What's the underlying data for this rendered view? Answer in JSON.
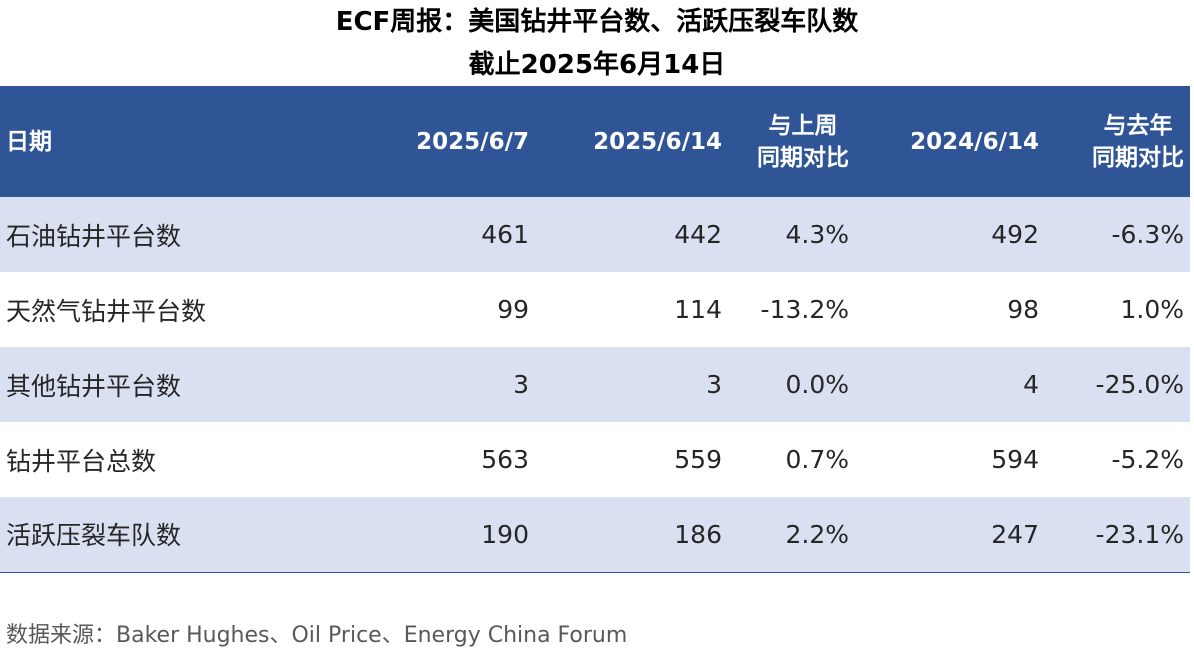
{
  "title": {
    "line1": "ECF周报：美国钻井平台数、活跃压裂车队数",
    "line2": "截止2025年6月14日"
  },
  "table": {
    "headers": {
      "label": "日期",
      "col1": "2025/6/7",
      "col2": "2025/6/14",
      "col3_line1": "与上周",
      "col3_line2": "同期对比",
      "col4": "2024/6/14",
      "col5_line1": "与去年",
      "col5_line2": "同期对比"
    },
    "rows": [
      {
        "label": "石油钻井平台数",
        "v1": "461",
        "v2": "442",
        "wow": "4.3%",
        "v3": "492",
        "yoy": "-6.3%"
      },
      {
        "label": "天然气钻井平台数",
        "v1": "99",
        "v2": "114",
        "wow": "-13.2%",
        "v3": "98",
        "yoy": "1.0%"
      },
      {
        "label": "其他钻井平台数",
        "v1": "3",
        "v2": "3",
        "wow": "0.0%",
        "v3": "4",
        "yoy": "-25.0%"
      },
      {
        "label": "钻井平台总数",
        "v1": "563",
        "v2": "559",
        "wow": "0.7%",
        "v3": "594",
        "yoy": "-5.2%"
      },
      {
        "label": "活跃压裂车队数",
        "v1": "190",
        "v2": "186",
        "wow": "2.2%",
        "v3": "247",
        "yoy": "-23.1%"
      }
    ]
  },
  "source": "数据来源：Baker Hughes、Oil Price、Energy China Forum",
  "colors": {
    "header_bg": "#2F5597",
    "band_bg": "#D9E0F2"
  }
}
